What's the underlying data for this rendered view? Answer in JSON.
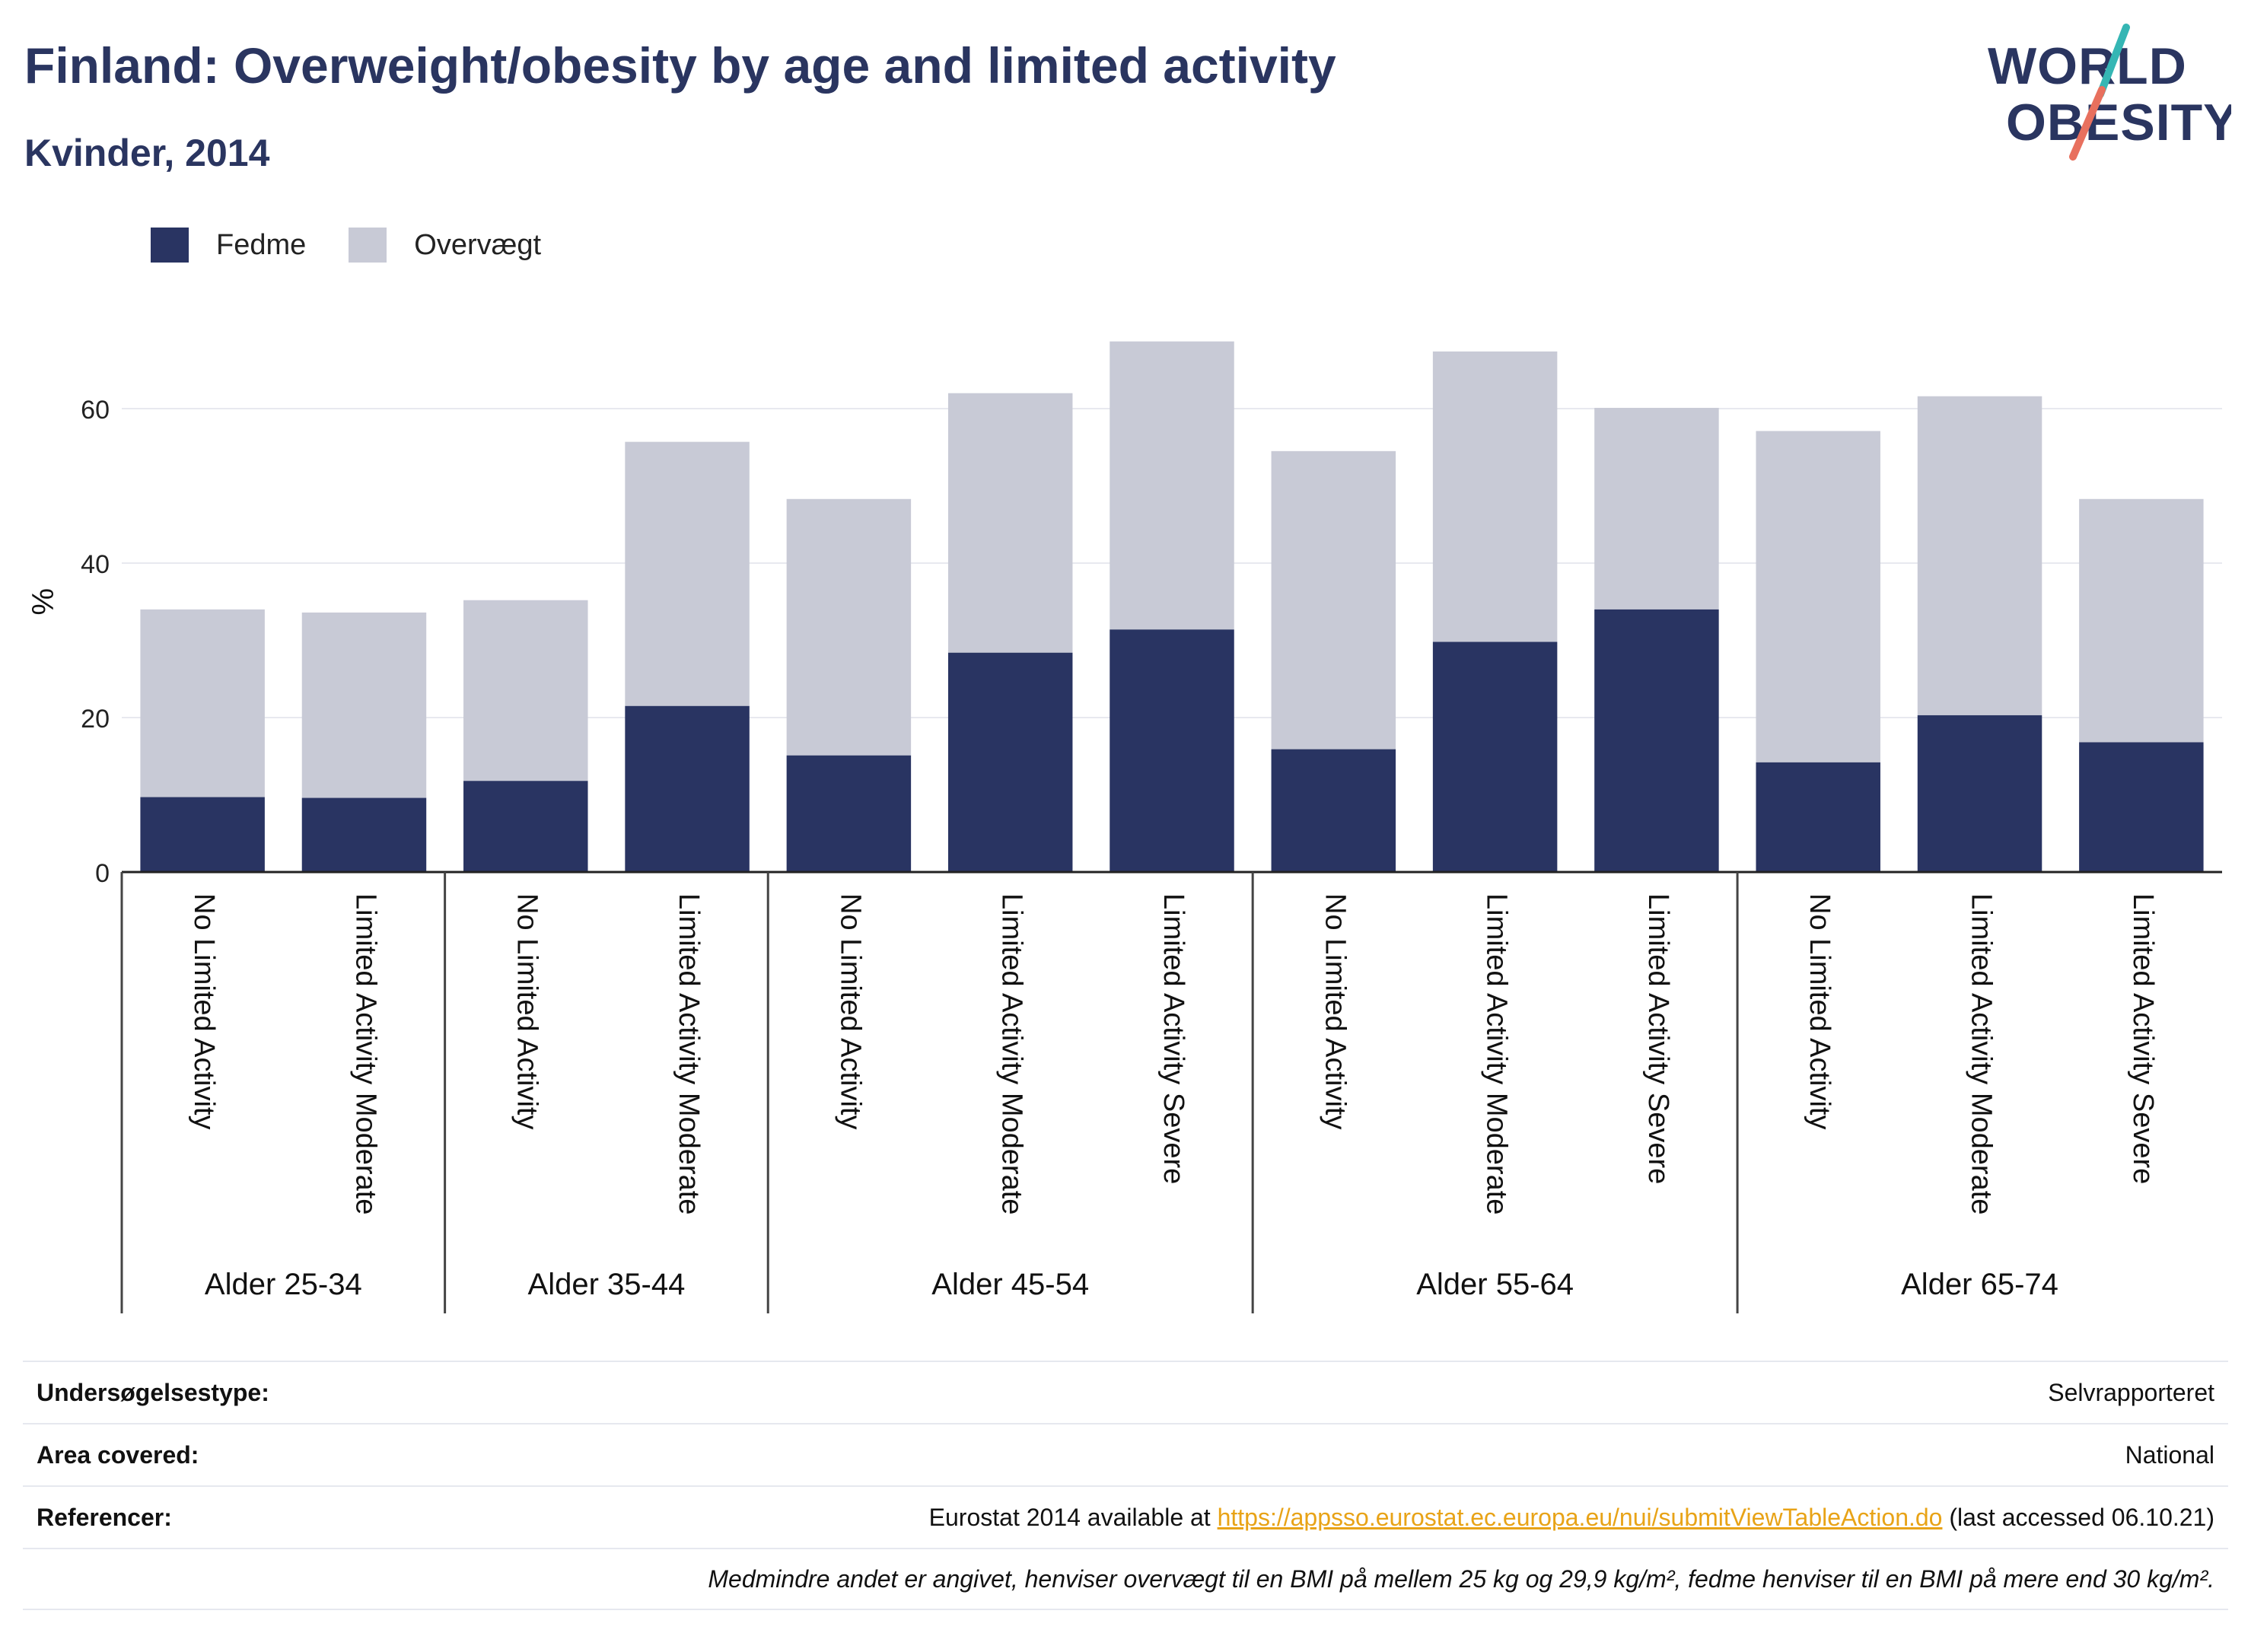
{
  "header": {
    "title": "Finland: Overweight/obesity by age and limited activity",
    "subtitle": "Kvinder, 2014"
  },
  "logo": {
    "line1": "WORLD",
    "line2": "OBESITY"
  },
  "legend": {
    "items": [
      {
        "label": "Fedme",
        "color": "#293462"
      },
      {
        "label": "Overvægt",
        "color": "#c8cad6"
      }
    ]
  },
  "chart_data": {
    "type": "bar",
    "stacked": true,
    "ylabel": "%",
    "ylim": [
      0,
      70
    ],
    "yticks": [
      0,
      20,
      40,
      60
    ],
    "grid": true,
    "legend_position": "top-left",
    "groups": [
      {
        "label": "Alder 25-34",
        "categories": [
          "No Limited Activity",
          "Limited Activity Moderate"
        ]
      },
      {
        "label": "Alder 35-44",
        "categories": [
          "No Limited Activity",
          "Limited Activity Moderate"
        ]
      },
      {
        "label": "Alder 45-54",
        "categories": [
          "No Limited Activity",
          "Limited Activity Moderate",
          "Limited Activity Severe"
        ]
      },
      {
        "label": "Alder 55-64",
        "categories": [
          "No Limited Activity",
          "Limited Activity Moderate",
          "Limited Activity Severe"
        ]
      },
      {
        "label": "Alder 65-74",
        "categories": [
          "No Limited Activity",
          "Limited Activity Moderate",
          "Limited Activity Severe"
        ]
      }
    ],
    "series": [
      {
        "name": "Fedme",
        "color": "#293462",
        "values": [
          9.7,
          9.6,
          11.8,
          21.5,
          15.1,
          28.4,
          31.4,
          15.9,
          29.8,
          34.0,
          14.2,
          20.3,
          16.8
        ]
      },
      {
        "name": "Overvægt",
        "color": "#c8cad6",
        "values": [
          24.3,
          24.0,
          23.4,
          34.2,
          33.2,
          33.6,
          37.3,
          38.6,
          37.6,
          26.1,
          42.9,
          41.3,
          31.5
        ]
      }
    ]
  },
  "info": {
    "rows": [
      {
        "label": "Undersøgelsestype:",
        "value": "Selvrapporteret"
      },
      {
        "label": "Area covered:",
        "value": "National"
      }
    ],
    "ref_label": "Referencer:",
    "ref_prefix": "Eurostat 2014 available at ",
    "ref_link": "https://appsso.eurostat.ec.europa.eu/nui/submitViewTableAction.do",
    "ref_suffix": " (last accessed 06.10.21)",
    "note": "Medmindre andet er angivet, henviser overvægt til en BMI på mellem 25 kg og 29,9 kg/m², fedme henviser til en BMI på mere end 30 kg/m²."
  }
}
